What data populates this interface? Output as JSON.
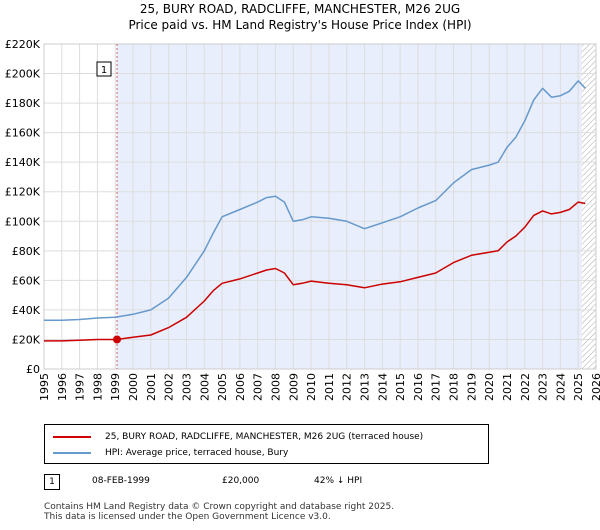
{
  "title_line1": "25, BURY ROAD, RADCLIFFE, MANCHESTER, M26 2UG",
  "title_line2": "Price paid vs. HM Land Registry's House Price Index (HPI)",
  "chart_data": {
    "type": "line",
    "ylim": [
      0,
      220000
    ],
    "xlim": [
      1995,
      2026
    ],
    "y_ticks": [
      0,
      20000,
      40000,
      60000,
      80000,
      100000,
      120000,
      140000,
      160000,
      180000,
      200000,
      220000
    ],
    "y_tick_labels": [
      "£0",
      "£20K",
      "£40K",
      "£60K",
      "£80K",
      "£100K",
      "£120K",
      "£140K",
      "£160K",
      "£180K",
      "£200K",
      "£220K"
    ],
    "x_ticks": [
      1995,
      1996,
      1997,
      1998,
      1999,
      2000,
      2001,
      2002,
      2003,
      2004,
      2005,
      2006,
      2007,
      2008,
      2009,
      2010,
      2011,
      2012,
      2013,
      2014,
      2015,
      2016,
      2017,
      2018,
      2019,
      2020,
      2021,
      2022,
      2023,
      2024,
      2025,
      2026
    ],
    "grid": true,
    "series": [
      {
        "name": "25, BURY ROAD, RADCLIFFE, MANCHESTER, M26 2UG (terraced house)",
        "color": "#cc0000",
        "x": [
          1995,
          1996,
          1997,
          1998,
          1999.1,
          2000,
          2001,
          2002,
          2003,
          2004,
          2004.5,
          2005,
          2006,
          2007,
          2007.5,
          2008,
          2008.5,
          2009,
          2009.5,
          2010,
          2011,
          2012,
          2013,
          2014,
          2015,
          2016,
          2017,
          2018,
          2019,
          2020,
          2020.5,
          2021,
          2021.5,
          2022,
          2022.5,
          2023,
          2023.5,
          2024,
          2024.5,
          2025,
          2025.4
        ],
        "y": [
          19000,
          19000,
          19500,
          20000,
          20000,
          21500,
          23000,
          28000,
          35000,
          46000,
          53000,
          58000,
          61000,
          65000,
          67000,
          68000,
          65000,
          57000,
          58000,
          59500,
          58000,
          57000,
          55000,
          57500,
          59000,
          62000,
          65000,
          72000,
          77000,
          79000,
          80000,
          86000,
          90000,
          96000,
          104000,
          107000,
          105000,
          106000,
          108000,
          113000,
          112000
        ]
      },
      {
        "name": "HPI: Average price, terraced house, Bury",
        "color": "#6699cc",
        "x": [
          1995,
          1996,
          1997,
          1998,
          1999,
          2000,
          2001,
          2002,
          2003,
          2004,
          2004.5,
          2005,
          2006,
          2007,
          2007.5,
          2008,
          2008.5,
          2009,
          2009.5,
          2010,
          2011,
          2012,
          2013,
          2014,
          2015,
          2016,
          2017,
          2018,
          2019,
          2020,
          2020.5,
          2021,
          2021.5,
          2022,
          2022.5,
          2023,
          2023.5,
          2024,
          2024.5,
          2025,
          2025.4
        ],
        "y": [
          33000,
          33000,
          33500,
          34500,
          35000,
          37000,
          40000,
          48000,
          62000,
          80000,
          92000,
          103000,
          108000,
          113000,
          116000,
          117000,
          113000,
          100000,
          101000,
          103000,
          102000,
          100000,
          95000,
          99000,
          103000,
          109000,
          114000,
          126000,
          135000,
          138000,
          140000,
          150000,
          157000,
          168000,
          182000,
          190000,
          184000,
          185000,
          188000,
          195000,
          190000
        ]
      }
    ],
    "markers": [
      {
        "label": "1",
        "x": 1999.1,
        "y": 20000,
        "color": "#cc0000"
      }
    ]
  },
  "legend": {
    "items": [
      {
        "label": "25, BURY ROAD, RADCLIFFE, MANCHESTER, M26 2UG (terraced house)",
        "color": "#cc0000"
      },
      {
        "label": "HPI: Average price, terraced house, Bury",
        "color": "#6699cc"
      }
    ]
  },
  "annotation": {
    "index": "1",
    "date": "08-FEB-1999",
    "price": "£20,000",
    "hpi_delta": "42% ↓ HPI"
  },
  "footer_line1": "Contains HM Land Registry data © Crown copyright and database right 2025.",
  "footer_line2": "This data is licensed under the Open Government Licence v3.0.",
  "colors": {
    "shade": "#e8eefb",
    "hatch": "#999999",
    "grid": "#dddddd"
  }
}
